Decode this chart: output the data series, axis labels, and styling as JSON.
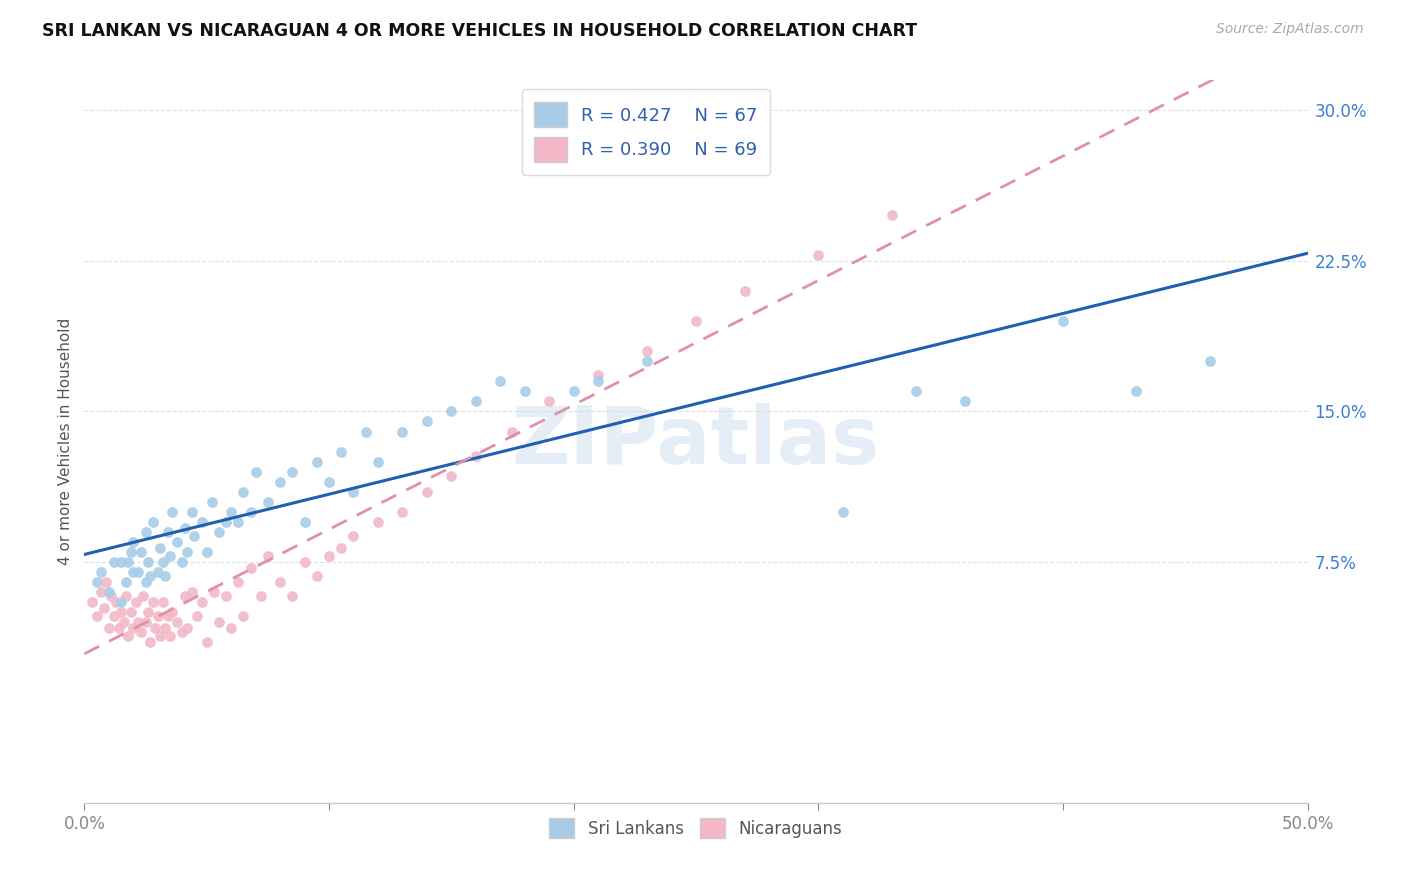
{
  "title": "SRI LANKAN VS NICARAGUAN 4 OR MORE VEHICLES IN HOUSEHOLD CORRELATION CHART",
  "source": "Source: ZipAtlas.com",
  "ylabel": "4 or more Vehicles in Household",
  "watermark": "ZIPatlas",
  "legend_R_sri": "R = 0.427",
  "legend_N_sri": "N = 67",
  "legend_R_nic": "R = 0.390",
  "legend_N_nic": "N = 69",
  "sri_lankan_color": "#a8cce8",
  "nicaraguan_color": "#f2b8c8",
  "sri_lankan_line_color": "#2060b0",
  "nicaraguan_line_color": "#e090a8",
  "xlim": [
    0.0,
    0.5
  ],
  "ylim": [
    -0.045,
    0.315
  ],
  "yticks": [
    0.075,
    0.15,
    0.225,
    0.3
  ],
  "xticks": [
    0.0,
    0.1,
    0.2,
    0.3,
    0.4,
    0.5
  ],
  "sri_x": [
    0.005,
    0.007,
    0.01,
    0.012,
    0.015,
    0.015,
    0.017,
    0.018,
    0.019,
    0.02,
    0.02,
    0.022,
    0.023,
    0.025,
    0.025,
    0.026,
    0.027,
    0.028,
    0.03,
    0.031,
    0.032,
    0.033,
    0.034,
    0.035,
    0.036,
    0.038,
    0.04,
    0.041,
    0.042,
    0.044,
    0.045,
    0.048,
    0.05,
    0.052,
    0.055,
    0.058,
    0.06,
    0.063,
    0.065,
    0.068,
    0.07,
    0.075,
    0.08,
    0.085,
    0.09,
    0.095,
    0.1,
    0.105,
    0.11,
    0.115,
    0.12,
    0.13,
    0.14,
    0.15,
    0.16,
    0.17,
    0.18,
    0.2,
    0.21,
    0.23,
    0.25,
    0.31,
    0.34,
    0.36,
    0.4,
    0.43,
    0.46
  ],
  "sri_y": [
    0.065,
    0.07,
    0.06,
    0.075,
    0.055,
    0.075,
    0.065,
    0.075,
    0.08,
    0.07,
    0.085,
    0.07,
    0.08,
    0.065,
    0.09,
    0.075,
    0.068,
    0.095,
    0.07,
    0.082,
    0.075,
    0.068,
    0.09,
    0.078,
    0.1,
    0.085,
    0.075,
    0.092,
    0.08,
    0.1,
    0.088,
    0.095,
    0.08,
    0.105,
    0.09,
    0.095,
    0.1,
    0.095,
    0.11,
    0.1,
    0.12,
    0.105,
    0.115,
    0.12,
    0.095,
    0.125,
    0.115,
    0.13,
    0.11,
    0.14,
    0.125,
    0.14,
    0.145,
    0.15,
    0.155,
    0.165,
    0.16,
    0.16,
    0.165,
    0.175,
    0.295,
    0.1,
    0.16,
    0.155,
    0.195,
    0.16,
    0.175
  ],
  "nic_x": [
    0.003,
    0.005,
    0.007,
    0.008,
    0.009,
    0.01,
    0.011,
    0.012,
    0.013,
    0.014,
    0.015,
    0.016,
    0.017,
    0.018,
    0.019,
    0.02,
    0.021,
    0.022,
    0.023,
    0.024,
    0.025,
    0.026,
    0.027,
    0.028,
    0.029,
    0.03,
    0.031,
    0.032,
    0.033,
    0.034,
    0.035,
    0.036,
    0.038,
    0.04,
    0.041,
    0.042,
    0.044,
    0.046,
    0.048,
    0.05,
    0.053,
    0.055,
    0.058,
    0.06,
    0.063,
    0.065,
    0.068,
    0.072,
    0.075,
    0.08,
    0.085,
    0.09,
    0.095,
    0.1,
    0.105,
    0.11,
    0.12,
    0.13,
    0.14,
    0.15,
    0.16,
    0.175,
    0.19,
    0.21,
    0.23,
    0.25,
    0.27,
    0.3,
    0.33
  ],
  "nic_y": [
    0.055,
    0.048,
    0.06,
    0.052,
    0.065,
    0.042,
    0.058,
    0.048,
    0.055,
    0.042,
    0.05,
    0.045,
    0.058,
    0.038,
    0.05,
    0.042,
    0.055,
    0.045,
    0.04,
    0.058,
    0.045,
    0.05,
    0.035,
    0.055,
    0.042,
    0.048,
    0.038,
    0.055,
    0.042,
    0.048,
    0.038,
    0.05,
    0.045,
    0.04,
    0.058,
    0.042,
    0.06,
    0.048,
    0.055,
    0.035,
    0.06,
    0.045,
    0.058,
    0.042,
    0.065,
    0.048,
    0.072,
    0.058,
    0.078,
    0.065,
    0.058,
    0.075,
    0.068,
    0.078,
    0.082,
    0.088,
    0.095,
    0.1,
    0.11,
    0.118,
    0.128,
    0.14,
    0.155,
    0.168,
    0.18,
    0.195,
    0.21,
    0.228,
    0.248
  ],
  "grid_color": "#e0e0e0",
  "grid_linestyle": "--"
}
